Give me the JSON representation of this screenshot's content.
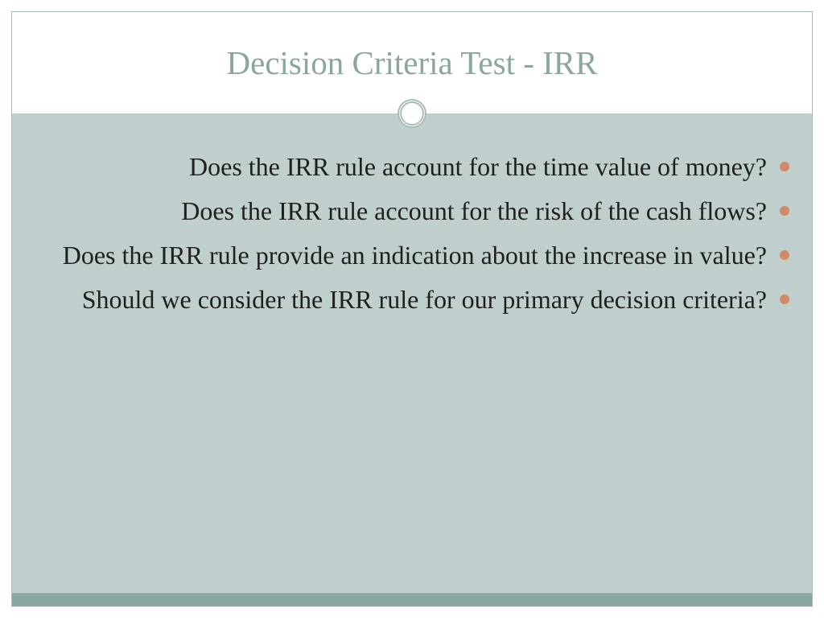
{
  "slide": {
    "title": "Decision Criteria Test - IRR",
    "title_color": "#8aa6a3",
    "title_fontsize": 41,
    "frame_border_color": "#a9bcb9",
    "divider_color": "#b8c7c4",
    "ring_border_color": "#a9bcb9",
    "body_background": "#c0cfcd",
    "footer_bar_color": "#8aa6a3",
    "bullet_color": "#d08a66",
    "text_color": "#1f1f1f",
    "text_fontsize": 32,
    "bullets": [
      "Does the IRR rule account for the time value of money?",
      "Does the IRR rule account for the risk of the cash flows?",
      "Does the IRR rule provide an indication about the increase in value?",
      "Should we consider the IRR rule for our primary decision criteria?"
    ]
  }
}
